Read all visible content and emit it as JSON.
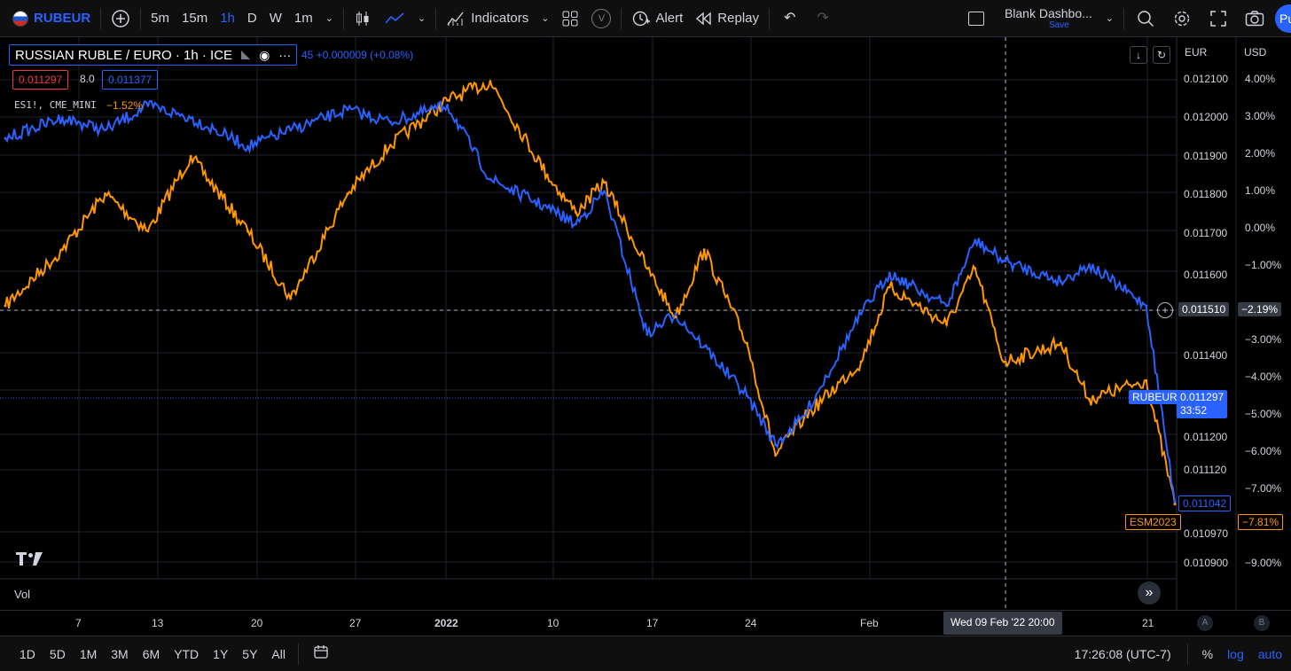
{
  "toolbar": {
    "symbol": "RUBEUR",
    "intervals": [
      "5m",
      "15m",
      "1h",
      "D",
      "W",
      "1m"
    ],
    "active_interval": "1h",
    "indicators_label": "Indicators",
    "alert_label": "Alert",
    "replay_label": "Replay",
    "layout_name": "Blank Dashbo...",
    "layout_save": "Save",
    "publish_label": "Pu",
    "v_badge": "V",
    "icons": [
      "plus-circle-icon",
      "candles-icon",
      "line-style-icon",
      "indicators-icon",
      "layouts-icon",
      "alert-icon",
      "replay-icon",
      "undo-icon",
      "redo-icon",
      "layout-icon",
      "search-icon",
      "gear-icon",
      "fullscreen-icon",
      "camera-icon"
    ]
  },
  "legend": {
    "title": "RUSSIAN RUBLE / EURO · 1h · ICE",
    "change_text": "45 +0.000009 (+0.08%)",
    "bid": "0.011297",
    "spread": "8.0",
    "ask": "0.011377",
    "compare_symbol": "ES1!, CME_MINI",
    "compare_change": "−1.52%"
  },
  "price_axis": {
    "currency_left": "EUR",
    "currency_right": "USD",
    "ticks": [
      "0.012100",
      "0.012000",
      "0.011900",
      "0.011800",
      "0.011700",
      "0.011600",
      "0.011400",
      "0.011200",
      "0.011120",
      "0.010970",
      "0.010900"
    ],
    "pct_ticks": [
      "4.00%",
      "3.00%",
      "2.00%",
      "1.00%",
      "0.00%",
      "−1.00%",
      "−3.00%",
      "−4.00%",
      "−5.00%",
      "−6.00%",
      "−7.00%",
      "−9.00%"
    ],
    "crosshair_price": "0.011510",
    "crosshair_pct": "−2.19%",
    "rubeur_tag": "RUBEUR",
    "rubeur_price": "0.011297",
    "rubeur_countdown": "33:52",
    "compare_price": "0.011042",
    "es_tag": "ESM2023",
    "es_pct": "−7.81%"
  },
  "pane": {
    "vol_label": "Vol"
  },
  "time_axis": {
    "ticks": [
      "7",
      "13",
      "20",
      "27",
      "2022",
      "10",
      "17",
      "24",
      "Feb",
      "21"
    ],
    "crosshair_time": "Wed 09 Feb '22   20:00",
    "a_label": "A",
    "b_label": "B"
  },
  "bottombar": {
    "ranges": [
      "1D",
      "5D",
      "1M",
      "3M",
      "6M",
      "YTD",
      "1Y",
      "5Y",
      "All"
    ],
    "clock": "17:26:08 (UTC-7)",
    "pct_label": "%",
    "log_label": "log",
    "auto_label": "auto"
  },
  "colors": {
    "rubeur": "#2962ff",
    "es": "#ff9800",
    "bg": "#000000",
    "grid": "#1e222d"
  },
  "chart_data": {
    "type": "line",
    "x_unit": "date",
    "x": [
      "2021-12-03",
      "2021-12-07",
      "2021-12-10",
      "2021-12-13",
      "2021-12-16",
      "2021-12-20",
      "2021-12-23",
      "2021-12-27",
      "2021-12-30",
      "2022-01-03",
      "2022-01-06",
      "2022-01-10",
      "2022-01-12",
      "2022-01-14",
      "2022-01-17",
      "2022-01-19",
      "2022-01-21",
      "2022-01-24",
      "2022-01-26",
      "2022-01-28",
      "2022-02-01",
      "2022-02-03",
      "2022-02-07",
      "2022-02-09",
      "2022-02-11",
      "2022-02-15",
      "2022-02-17",
      "2022-02-21",
      "2022-02-23"
    ],
    "series": [
      {
        "name": "RUBEUR",
        "axis": "EUR",
        "values": [
          0.01193,
          0.01198,
          0.01195,
          0.01201,
          0.01198,
          0.01191,
          0.01195,
          0.012,
          0.01197,
          0.01201,
          0.01183,
          0.01176,
          0.01172,
          0.0118,
          0.01145,
          0.0115,
          0.01142,
          0.0113,
          0.01118,
          0.01125,
          0.0115,
          0.0116,
          0.01152,
          0.01168,
          0.01163,
          0.01158,
          0.01162,
          0.01152,
          0.01104
        ]
      },
      {
        "name": "ES1!, CME_MINI",
        "axis": "percent",
        "values": [
          -2.5,
          -1.0,
          0.5,
          -0.5,
          1.5,
          -0.5,
          -2.3,
          0.5,
          1.8,
          3.0,
          3.5,
          1.0,
          0.0,
          0.8,
          -1.5,
          -2.8,
          -1.0,
          -3.5,
          -6.5,
          -5.5,
          -4.0,
          -2.0,
          -3.0,
          -1.5,
          -4.0,
          -3.5,
          -5.0,
          -4.5,
          -7.81
        ]
      }
    ],
    "ylim": [
      0.01088,
      0.01216
    ],
    "ylim_pct": [
      -9.5,
      4.5
    ],
    "grid": true,
    "legend": "top-left"
  }
}
